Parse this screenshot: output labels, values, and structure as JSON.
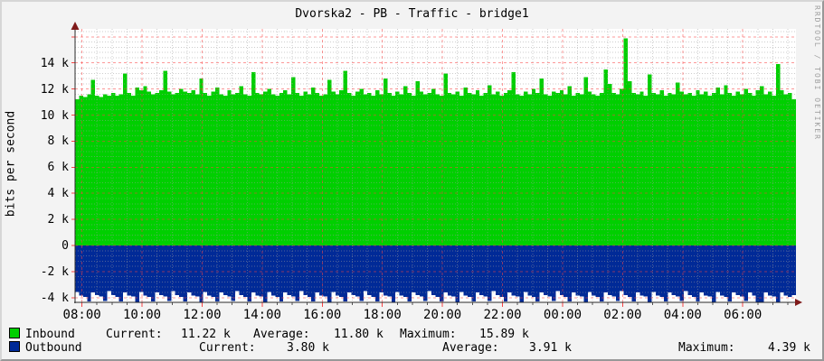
{
  "title": "Dvorska2 - PB - Traffic - bridge1",
  "watermark": "RRDTOOL / TOBI OETIKER",
  "ylabel": "bits per second",
  "colors": {
    "inbound": "#00CF00",
    "outbound": "#002A97",
    "canvas": "#ffffff",
    "background": "#f3f3f3",
    "major_grid": "#fa4444",
    "minor_grid": "#9c9c9c",
    "axis": "#2a2a2a",
    "arrow": "#7f1a1a"
  },
  "legend": {
    "rows": [
      {
        "name": "Inbound",
        "swatch_color": "#00CF00",
        "fields": [
          {
            "label": "Current:",
            "value": "11.22 k"
          },
          {
            "label": "Average:",
            "value": "11.80 k"
          },
          {
            "label": "Maximum:",
            "value": "15.89 k"
          }
        ]
      },
      {
        "name": "Outbound",
        "swatch_color": "#002A97",
        "fields": [
          {
            "label": "Current:",
            "value": "3.80 k"
          },
          {
            "label": "Average:",
            "value": "3.91 k"
          },
          {
            "label": "Maximum:",
            "value": "4.39 k"
          }
        ]
      }
    ]
  },
  "chart_data": {
    "type": "area",
    "title": "Dvorska2 - PB - Traffic - bridge1",
    "ylabel": "bits per second",
    "unit": "k bits/second",
    "ylim": [
      -4.36,
      16.61
    ],
    "x_window_hours": [
      7.77,
      31.77
    ],
    "grid": {
      "y_major_step": 2,
      "y_minor_step": 0.4,
      "x_major_hours": 2,
      "x_minor_hours": 0.5,
      "grid_on": true
    },
    "y_ticks": [
      {
        "value": 14,
        "label": "14 k"
      },
      {
        "value": 12,
        "label": "12 k"
      },
      {
        "value": 10,
        "label": "10 k"
      },
      {
        "value": 8,
        "label": "8 k"
      },
      {
        "value": 6,
        "label": "6 k"
      },
      {
        "value": 4,
        "label": "4 k"
      },
      {
        "value": 2,
        "label": "2 k"
      },
      {
        "value": 0,
        "label": "0"
      },
      {
        "value": -2,
        "label": "-2 k"
      },
      {
        "value": -4,
        "label": "-4 k"
      }
    ],
    "x_ticks": [
      {
        "hour": 8,
        "label": "08:00"
      },
      {
        "hour": 10,
        "label": "10:00"
      },
      {
        "hour": 12,
        "label": "12:00"
      },
      {
        "hour": 14,
        "label": "14:00"
      },
      {
        "hour": 16,
        "label": "16:00"
      },
      {
        "hour": 18,
        "label": "18:00"
      },
      {
        "hour": 20,
        "label": "20:00"
      },
      {
        "hour": 22,
        "label": "22:00"
      },
      {
        "hour": 24,
        "label": "00:00"
      },
      {
        "hour": 26,
        "label": "02:00"
      },
      {
        "hour": 28,
        "label": "04:00"
      },
      {
        "hour": 30,
        "label": "06:00"
      }
    ],
    "series": [
      {
        "name": "Inbound",
        "color": "#00CF00",
        "direction": "up",
        "stats": {
          "current": 11.22,
          "average": 11.8,
          "maximum": 15.89
        },
        "values": [
          11.2,
          11.5,
          11.4,
          11.6,
          12.7,
          11.5,
          11.4,
          11.6,
          11.5,
          11.7,
          11.5,
          11.6,
          13.2,
          11.7,
          11.5,
          12.1,
          11.9,
          12.2,
          11.8,
          11.6,
          11.7,
          11.9,
          13.4,
          11.8,
          11.6,
          11.7,
          12.0,
          11.8,
          11.7,
          11.9,
          11.6,
          12.8,
          11.7,
          11.5,
          11.8,
          12.1,
          11.6,
          11.5,
          11.9,
          11.6,
          11.7,
          12.2,
          11.6,
          11.5,
          13.3,
          11.7,
          11.6,
          11.8,
          12.0,
          11.6,
          11.5,
          11.7,
          11.9,
          11.6,
          12.9,
          11.7,
          11.5,
          11.8,
          11.6,
          12.1,
          11.7,
          11.5,
          11.6,
          12.7,
          11.8,
          11.6,
          11.9,
          13.4,
          11.7,
          11.5,
          11.8,
          12.0,
          11.6,
          11.7,
          11.5,
          11.9,
          11.6,
          12.8,
          11.7,
          11.5,
          11.8,
          11.6,
          12.2,
          11.7,
          11.5,
          12.6,
          11.8,
          11.6,
          11.7,
          12.0,
          11.6,
          11.5,
          13.2,
          11.7,
          11.6,
          11.8,
          11.5,
          12.1,
          11.7,
          11.6,
          11.9,
          11.5,
          11.7,
          12.3,
          11.6,
          11.8,
          11.5,
          11.7,
          11.9,
          13.3,
          11.6,
          11.5,
          11.8,
          11.6,
          12.0,
          11.7,
          12.8,
          11.6,
          11.5,
          11.8,
          11.7,
          11.9,
          11.6,
          12.2,
          11.5,
          11.7,
          11.6,
          12.9,
          11.8,
          11.6,
          11.5,
          11.7,
          13.5,
          12.4,
          11.7,
          11.6,
          12.0,
          15.89,
          12.6,
          11.7,
          11.6,
          11.8,
          11.5,
          13.1,
          11.7,
          11.6,
          11.9,
          11.5,
          11.7,
          11.6,
          12.5,
          11.8,
          11.6,
          11.7,
          11.5,
          11.9,
          11.6,
          11.8,
          11.5,
          11.7,
          12.1,
          11.6,
          12.3,
          11.7,
          11.5,
          11.8,
          11.6,
          12.0,
          11.7,
          11.5,
          11.9,
          12.2,
          11.6,
          11.8,
          11.5,
          13.9,
          11.9,
          11.6,
          11.7,
          11.2
        ]
      },
      {
        "name": "Outbound",
        "color": "#002A97",
        "direction": "down",
        "stats": {
          "current": 3.8,
          "average": 3.91,
          "maximum": 4.39
        },
        "values": [
          3.55,
          3.85,
          3.95,
          4.3,
          3.6,
          3.8,
          3.9,
          4.25,
          3.5,
          3.8,
          3.95,
          4.3,
          3.6,
          3.85,
          3.9,
          4.35,
          3.55,
          3.85,
          3.95,
          4.3,
          3.6,
          3.8,
          3.9,
          4.25,
          3.5,
          3.8,
          3.95,
          4.3,
          3.6,
          3.85,
          3.9,
          4.35,
          3.55,
          3.85,
          3.95,
          4.3,
          3.6,
          3.8,
          3.9,
          4.25,
          3.5,
          3.8,
          3.95,
          4.3,
          3.6,
          3.85,
          3.9,
          4.35,
          3.55,
          3.85,
          3.95,
          4.3,
          3.6,
          3.8,
          3.9,
          4.25,
          3.5,
          3.8,
          3.95,
          4.3,
          3.6,
          3.85,
          3.9,
          4.35,
          3.55,
          3.85,
          3.95,
          4.3,
          3.6,
          3.8,
          3.9,
          4.25,
          3.5,
          3.8,
          3.95,
          4.3,
          3.6,
          3.85,
          3.9,
          4.35,
          3.55,
          3.85,
          3.95,
          4.3,
          3.6,
          3.8,
          3.9,
          4.25,
          3.5,
          3.8,
          3.95,
          4.3,
          3.6,
          3.85,
          3.9,
          4.35,
          3.55,
          3.85,
          3.95,
          4.3,
          3.6,
          3.8,
          3.9,
          4.25,
          3.5,
          3.8,
          3.95,
          4.3,
          3.6,
          3.85,
          3.9,
          4.35,
          3.55,
          3.85,
          3.95,
          4.3,
          3.6,
          3.8,
          3.9,
          4.25,
          3.5,
          3.8,
          3.95,
          4.3,
          3.6,
          3.85,
          3.9,
          4.35,
          3.55,
          3.85,
          3.95,
          4.3,
          3.6,
          3.8,
          3.9,
          4.25,
          3.5,
          3.8,
          3.95,
          4.3,
          3.6,
          3.85,
          3.9,
          4.35,
          3.55,
          3.85,
          3.95,
          4.3,
          3.6,
          3.8,
          3.9,
          4.25,
          3.5,
          3.8,
          3.95,
          4.3,
          3.6,
          3.85,
          3.9,
          4.35,
          3.55,
          3.85,
          3.95,
          4.3,
          3.6,
          3.8,
          3.9,
          4.25,
          3.6,
          3.85,
          4.39,
          4.39,
          3.6,
          3.85,
          3.9,
          4.35,
          3.6,
          3.85,
          3.95,
          3.8
        ]
      }
    ]
  }
}
